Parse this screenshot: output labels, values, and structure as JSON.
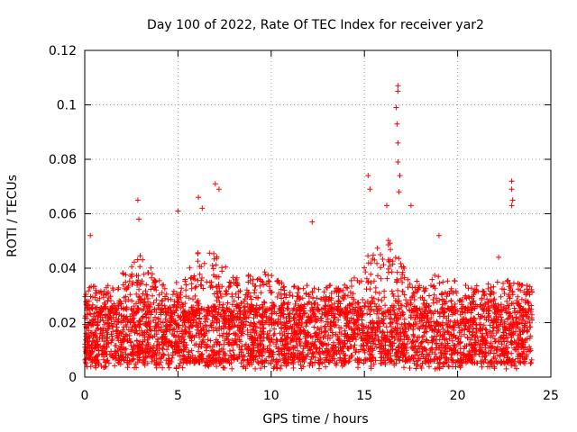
{
  "chart_data": {
    "type": "scatter",
    "title": "Day 100 of 2022, Rate Of TEC Index for receiver yar2",
    "xlabel": "GPS time / hours",
    "ylabel": "ROTI / TECUs",
    "xlim": [
      0,
      25
    ],
    "ylim": [
      0,
      0.12
    ],
    "xticks": [
      0,
      5,
      10,
      15,
      20,
      25
    ],
    "xtick_labels": [
      "0",
      "5",
      "10",
      "15",
      "20",
      "25"
    ],
    "yticks": [
      0,
      0.02,
      0.04,
      0.06,
      0.08,
      0.1,
      0.12
    ],
    "ytick_labels": [
      "0",
      "0.02",
      "0.04",
      "0.06",
      "0.08",
      "0.1",
      "0.12"
    ],
    "grid": true,
    "marker": "+",
    "series": [
      {
        "name": "ROTI",
        "color": "#ff0000",
        "x_range": [
          0,
          24
        ],
        "baseline_band": [
          0.005,
          0.025
        ],
        "typical_max": 0.045,
        "notable_points": [
          {
            "x": 0.3,
            "y": 0.052
          },
          {
            "x": 2.85,
            "y": 0.065
          },
          {
            "x": 2.9,
            "y": 0.058
          },
          {
            "x": 5.0,
            "y": 0.061
          },
          {
            "x": 6.1,
            "y": 0.066
          },
          {
            "x": 6.3,
            "y": 0.062
          },
          {
            "x": 7.0,
            "y": 0.071
          },
          {
            "x": 7.2,
            "y": 0.069
          },
          {
            "x": 12.2,
            "y": 0.057
          },
          {
            "x": 15.2,
            "y": 0.074
          },
          {
            "x": 15.3,
            "y": 0.069
          },
          {
            "x": 16.2,
            "y": 0.063
          },
          {
            "x": 16.8,
            "y": 0.107
          },
          {
            "x": 16.8,
            "y": 0.105
          },
          {
            "x": 16.7,
            "y": 0.099
          },
          {
            "x": 16.75,
            "y": 0.093
          },
          {
            "x": 16.8,
            "y": 0.086
          },
          {
            "x": 16.8,
            "y": 0.079
          },
          {
            "x": 16.9,
            "y": 0.074
          },
          {
            "x": 16.85,
            "y": 0.068
          },
          {
            "x": 17.5,
            "y": 0.063
          },
          {
            "x": 19.0,
            "y": 0.052
          },
          {
            "x": 22.2,
            "y": 0.044
          },
          {
            "x": 22.9,
            "y": 0.072
          },
          {
            "x": 22.9,
            "y": 0.069
          },
          {
            "x": 22.95,
            "y": 0.065
          },
          {
            "x": 22.9,
            "y": 0.063
          }
        ]
      }
    ]
  }
}
